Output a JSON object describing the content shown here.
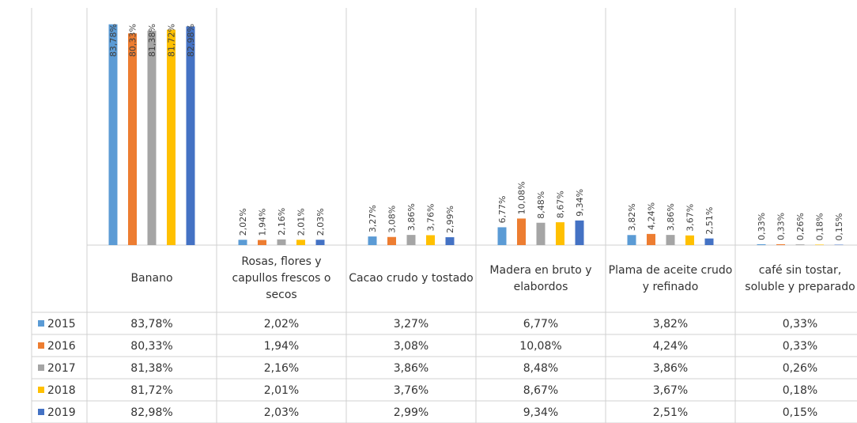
{
  "chart_data": {
    "type": "bar",
    "categories": [
      "Banano",
      "Rosas, flores y capullos frescos o secos",
      "Cacao crudo y tostado",
      "Madera en bruto y elabordos",
      "Plama de aceite crudo y refinado",
      "café sin tostar, soluble y preparado"
    ],
    "ylim": [
      0,
      90
    ],
    "data_table": true,
    "series": [
      {
        "name": "2015",
        "color": "#5b9bd5",
        "values": [
          83.78,
          2.02,
          3.27,
          6.77,
          3.82,
          0.33
        ],
        "value_labels": [
          "83,78%",
          "2,02%",
          "3,27%",
          "6,77%",
          "3,82%",
          "0,33%"
        ]
      },
      {
        "name": "2016",
        "color": "#ed7d31",
        "values": [
          80.33,
          1.94,
          3.08,
          10.08,
          4.24,
          0.33
        ],
        "value_labels": [
          "80,33%",
          "1,94%",
          "3,08%",
          "10,08%",
          "4,24%",
          "0,33%"
        ]
      },
      {
        "name": "2017",
        "color": "#a5a5a5",
        "values": [
          81.38,
          2.16,
          3.86,
          8.48,
          3.86,
          0.26
        ],
        "value_labels": [
          "81,38%",
          "2,16%",
          "3,86%",
          "8,48%",
          "3,86%",
          "0,26%"
        ]
      },
      {
        "name": "2018",
        "color": "#ffc000",
        "values": [
          81.72,
          2.01,
          3.76,
          8.67,
          3.67,
          0.18
        ],
        "value_labels": [
          "81,72%",
          "2,01%",
          "3,76%",
          "8,67%",
          "3,67%",
          "0,18%"
        ]
      },
      {
        "name": "2019",
        "color": "#4472c4",
        "values": [
          82.98,
          2.03,
          2.99,
          9.34,
          2.51,
          0.15
        ],
        "value_labels": [
          "82,98%",
          "2,03%",
          "2,99%",
          "9,34%",
          "2,51%",
          "0,15%"
        ]
      }
    ]
  }
}
